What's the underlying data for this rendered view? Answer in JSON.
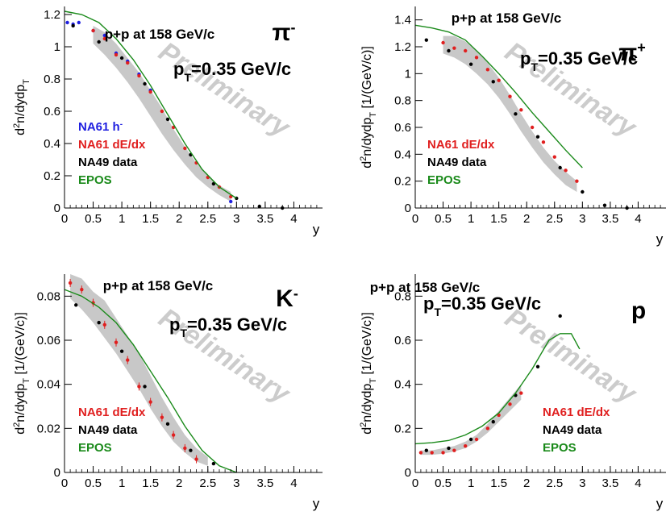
{
  "chart_data": [
    {
      "type": "scatter",
      "title": "p+p at 158 GeV/c",
      "particle": "π",
      "particle_sup": "-",
      "pt_label": "p",
      "pt_sub": "T",
      "pt_value": "=0.35 GeV/c",
      "watermark": "Preliminary",
      "xlabel": "y",
      "ylabel_main": "d",
      "ylabel_sup": "2",
      "ylabel_rest": "n/dydp",
      "ylabel_sub": "T",
      "ylabel_units": "",
      "xlim": [
        0,
        4.5
      ],
      "ylim": [
        0,
        1.25
      ],
      "xticks": [
        0,
        0.5,
        1,
        1.5,
        2,
        2.5,
        3,
        3.5,
        4
      ],
      "yticks": [
        0,
        0.2,
        0.4,
        0.6,
        0.8,
        1,
        1.2
      ],
      "xtick_labels": [
        "0",
        "0.5",
        "1",
        "1.5",
        "2",
        "2.5",
        "3",
        "3.5",
        "4"
      ],
      "ytick_labels": [
        "0",
        "0.2",
        "0.4",
        "0.6",
        "0.8",
        "1",
        "1.2"
      ],
      "legend": [
        {
          "label": "NA61 h",
          "sup": "-",
          "color": "#1f1fe0"
        },
        {
          "label": "NA61 dE/dx",
          "sup": "",
          "color": "#e01f1f"
        },
        {
          "label": "NA49 data",
          "sup": "",
          "color": "#000000"
        },
        {
          "label": "EPOS",
          "sup": "",
          "color": "#1a8a1a"
        }
      ],
      "band": {
        "x": [
          0.5,
          0.7,
          0.9,
          1.1,
          1.3,
          1.5,
          1.7,
          1.9,
          2.1,
          2.3,
          2.5,
          2.7,
          2.9
        ],
        "low": [
          1.02,
          0.95,
          0.87,
          0.78,
          0.68,
          0.57,
          0.46,
          0.36,
          0.27,
          0.19,
          0.13,
          0.08,
          0.04
        ],
        "high": [
          1.13,
          1.09,
          1.02,
          0.93,
          0.84,
          0.73,
          0.62,
          0.49,
          0.38,
          0.28,
          0.2,
          0.14,
          0.1
        ]
      },
      "series": [
        {
          "name": "NA61 h-",
          "color": "#1f1fe0",
          "x": [
            0.05,
            0.15,
            0.25,
            0.5,
            0.7,
            0.9,
            1.1,
            1.3,
            1.5,
            2.9
          ],
          "y": [
            1.15,
            1.14,
            1.15,
            1.1,
            1.07,
            0.96,
            0.91,
            0.83,
            0.73,
            0.04
          ]
        },
        {
          "name": "NA61 dE/dx",
          "color": "#e01f1f",
          "x": [
            0.5,
            0.7,
            0.9,
            1.1,
            1.3,
            1.5,
            1.7,
            1.9,
            2.1,
            2.3,
            2.5,
            2.7,
            2.9
          ],
          "y": [
            1.1,
            1.05,
            0.95,
            0.9,
            0.82,
            0.72,
            0.6,
            0.5,
            0.37,
            0.28,
            0.19,
            0.13,
            0.07
          ]
        },
        {
          "name": "NA49 data",
          "color": "#000000",
          "x": [
            0.15,
            0.6,
            1.0,
            1.4,
            1.8,
            2.2,
            2.6,
            3.0,
            3.4,
            3.8
          ],
          "y": [
            1.13,
            1.03,
            0.93,
            0.77,
            0.55,
            0.33,
            0.15,
            0.06,
            0.01,
            0.0
          ]
        },
        {
          "name": "EPOS",
          "color": "#1a8a1a",
          "line": true,
          "x": [
            0,
            0.3,
            0.6,
            0.9,
            1.2,
            1.5,
            1.8,
            2.1,
            2.4,
            2.7,
            3.0
          ],
          "y": [
            1.22,
            1.2,
            1.15,
            1.05,
            0.92,
            0.76,
            0.58,
            0.4,
            0.24,
            0.13,
            0.06
          ]
        }
      ]
    },
    {
      "type": "scatter",
      "title": "p+p at 158 GeV/c",
      "particle": "π",
      "particle_sup": "+",
      "pt_label": "p",
      "pt_sub": "T",
      "pt_value": "=0.35 GeV/c",
      "watermark": "Preliminary",
      "xlabel": "y",
      "ylabel_main": "d",
      "ylabel_sup": "2",
      "ylabel_rest": "n/dydp",
      "ylabel_sub": "T",
      "ylabel_units": " [1/(GeV/c)]",
      "xlim": [
        0,
        4.5
      ],
      "ylim": [
        0,
        1.5
      ],
      "xticks": [
        0,
        0.5,
        1,
        1.5,
        2,
        2.5,
        3,
        3.5,
        4
      ],
      "yticks": [
        0,
        0.2,
        0.4,
        0.6,
        0.8,
        1,
        1.2,
        1.4
      ],
      "xtick_labels": [
        "0",
        "0.5",
        "1",
        "1.5",
        "2",
        "2.5",
        "3",
        "3.5",
        "4"
      ],
      "ytick_labels": [
        "0",
        "0.2",
        "0.4",
        "0.6",
        "0.8",
        "1",
        "1.2",
        "1.4"
      ],
      "legend": [
        {
          "label": "NA61 dE/dx",
          "sup": "",
          "color": "#e01f1f"
        },
        {
          "label": "NA49 data",
          "sup": "",
          "color": "#000000"
        },
        {
          "label": "EPOS",
          "sup": "",
          "color": "#1a8a1a"
        }
      ],
      "band": {
        "x": [
          0.5,
          0.7,
          0.9,
          1.1,
          1.3,
          1.5,
          1.7,
          1.9,
          2.1,
          2.3,
          2.5,
          2.7,
          2.9
        ],
        "low": [
          1.15,
          1.12,
          1.07,
          1.0,
          0.92,
          0.82,
          0.7,
          0.57,
          0.45,
          0.34,
          0.25,
          0.17,
          0.12
        ],
        "high": [
          1.28,
          1.28,
          1.24,
          1.17,
          1.08,
          0.97,
          0.84,
          0.7,
          0.57,
          0.45,
          0.35,
          0.27,
          0.2
        ]
      },
      "series": [
        {
          "name": "NA61 dE/dx",
          "color": "#e01f1f",
          "x": [
            0.5,
            0.7,
            0.9,
            1.1,
            1.3,
            1.5,
            1.7,
            1.9,
            2.1,
            2.3,
            2.5,
            2.7,
            2.9
          ],
          "y": [
            1.23,
            1.19,
            1.17,
            1.12,
            1.03,
            0.95,
            0.83,
            0.73,
            0.6,
            0.49,
            0.38,
            0.28,
            0.2
          ]
        },
        {
          "name": "NA49 data",
          "color": "#000000",
          "x": [
            0.2,
            0.6,
            1.0,
            1.4,
            1.8,
            2.2,
            2.6,
            3.0,
            3.4,
            3.8
          ],
          "y": [
            1.25,
            1.17,
            1.07,
            0.94,
            0.7,
            0.53,
            0.3,
            0.12,
            0.02,
            0.0
          ]
        },
        {
          "name": "EPOS",
          "color": "#1a8a1a",
          "line": true,
          "x": [
            0,
            0.3,
            0.6,
            0.9,
            1.2,
            1.5,
            1.8,
            2.1,
            2.4,
            2.7,
            3.0
          ],
          "y": [
            1.36,
            1.34,
            1.31,
            1.25,
            1.13,
            1.0,
            0.86,
            0.71,
            0.57,
            0.43,
            0.3
          ]
        }
      ]
    },
    {
      "type": "scatter",
      "title": "p+p at 158 GeV/c",
      "particle": "K",
      "particle_sup": "-",
      "pt_label": "p",
      "pt_sub": "T",
      "pt_value": "=0.35 GeV/c",
      "watermark": "Preliminary",
      "xlabel": "y",
      "ylabel_main": "d",
      "ylabel_sup": "2",
      "ylabel_rest": "n/dydp",
      "ylabel_sub": "T",
      "ylabel_units": " [1/(GeV/c)]",
      "xlim": [
        0,
        4.5
      ],
      "ylim": [
        0,
        0.09
      ],
      "xticks": [
        0,
        0.5,
        1,
        1.5,
        2,
        2.5,
        3,
        3.5,
        4
      ],
      "yticks": [
        0,
        0.02,
        0.04,
        0.06,
        0.08
      ],
      "xtick_labels": [
        "0",
        "0.5",
        "1",
        "1.5",
        "2",
        "2.5",
        "3",
        "3.5",
        "4"
      ],
      "ytick_labels": [
        "0",
        "0.02",
        "0.04",
        "0.06",
        "0.08"
      ],
      "legend": [
        {
          "label": "NA61 dE/dx",
          "sup": "",
          "color": "#e01f1f"
        },
        {
          "label": "NA49 data",
          "sup": "",
          "color": "#000000"
        },
        {
          "label": "EPOS",
          "sup": "",
          "color": "#1a8a1a"
        }
      ],
      "band": {
        "x": [
          0.1,
          0.3,
          0.5,
          0.7,
          0.9,
          1.1,
          1.3,
          1.5,
          1.7,
          1.9,
          2.1,
          2.3,
          2.5
        ],
        "low": [
          0.079,
          0.074,
          0.068,
          0.061,
          0.054,
          0.046,
          0.038,
          0.029,
          0.021,
          0.014,
          0.009,
          0.005,
          0.003
        ],
        "high": [
          0.09,
          0.088,
          0.082,
          0.078,
          0.07,
          0.062,
          0.054,
          0.044,
          0.034,
          0.025,
          0.017,
          0.011,
          0.007
        ]
      },
      "series": [
        {
          "name": "NA61 dE/dx",
          "color": "#e01f1f",
          "x": [
            0.1,
            0.3,
            0.5,
            0.7,
            0.9,
            1.1,
            1.3,
            1.5,
            1.7,
            1.9,
            2.1,
            2.3
          ],
          "y": [
            0.086,
            0.083,
            0.077,
            0.067,
            0.059,
            0.051,
            0.039,
            0.032,
            0.025,
            0.017,
            0.011,
            0.006
          ]
        },
        {
          "name": "NA49 data",
          "color": "#000000",
          "x": [
            0.2,
            0.6,
            1.0,
            1.4,
            1.8,
            2.2,
            2.6
          ],
          "y": [
            0.076,
            0.068,
            0.055,
            0.039,
            0.022,
            0.01,
            0.004
          ]
        },
        {
          "name": "EPOS",
          "color": "#1a8a1a",
          "line": true,
          "x": [
            0,
            0.3,
            0.6,
            0.9,
            1.2,
            1.5,
            1.8,
            2.1,
            2.4,
            2.7,
            3.0
          ],
          "y": [
            0.083,
            0.08,
            0.075,
            0.068,
            0.058,
            0.046,
            0.034,
            0.021,
            0.01,
            0.003,
            0.0
          ]
        }
      ]
    },
    {
      "type": "scatter",
      "title": "p+p at 158 GeV/c",
      "particle": "p",
      "particle_sup": "",
      "pt_label": "p",
      "pt_sub": "T",
      "pt_value": "=0.35 GeV/c",
      "watermark": "Preliminary",
      "xlabel": "y",
      "ylabel_main": "d",
      "ylabel_sup": "2",
      "ylabel_rest": "n/dydp",
      "ylabel_sub": "T",
      "ylabel_units": " [1/(GeV/c)]",
      "xlim": [
        0,
        4.5
      ],
      "ylim": [
        0,
        0.9
      ],
      "xticks": [
        0,
        0.5,
        1,
        1.5,
        2,
        2.5,
        3,
        3.5,
        4
      ],
      "yticks": [
        0,
        0.2,
        0.4,
        0.6,
        0.8
      ],
      "xtick_labels": [
        "0",
        "0.5",
        "1",
        "1.5",
        "2",
        "2.5",
        "3",
        "3.5",
        "4"
      ],
      "ytick_labels": [
        "0",
        "0.2",
        "0.4",
        "0.6",
        "0.8"
      ],
      "legend": [
        {
          "label": "NA61 dE/dx",
          "sup": "",
          "color": "#e01f1f"
        },
        {
          "label": "NA49 data",
          "sup": "",
          "color": "#000000"
        },
        {
          "label": "EPOS",
          "sup": "",
          "color": "#1a8a1a"
        }
      ],
      "band": {
        "x": [
          0.1,
          0.3,
          0.5,
          0.7,
          0.9,
          1.1,
          1.3,
          1.5,
          1.7,
          1.9
        ],
        "low": [
          0.08,
          0.08,
          0.085,
          0.095,
          0.11,
          0.14,
          0.18,
          0.23,
          0.28,
          0.33
        ],
        "high": [
          0.1,
          0.1,
          0.11,
          0.12,
          0.14,
          0.17,
          0.22,
          0.28,
          0.34,
          0.4
        ]
      },
      "series": [
        {
          "name": "NA61 dE/dx",
          "color": "#e01f1f",
          "x": [
            0.1,
            0.3,
            0.5,
            0.7,
            0.9,
            1.1,
            1.3,
            1.5,
            1.7,
            1.9
          ],
          "y": [
            0.09,
            0.09,
            0.09,
            0.1,
            0.12,
            0.15,
            0.2,
            0.26,
            0.31,
            0.36
          ]
        },
        {
          "name": "NA49 data",
          "color": "#000000",
          "x": [
            0.2,
            0.6,
            1.0,
            1.4,
            1.8,
            2.2,
            2.6
          ],
          "y": [
            0.1,
            0.11,
            0.15,
            0.23,
            0.35,
            0.48,
            0.71
          ]
        },
        {
          "name": "EPOS",
          "color": "#1a8a1a",
          "line": true,
          "x": [
            0,
            0.3,
            0.6,
            0.9,
            1.2,
            1.5,
            1.8,
            2.1,
            2.4,
            2.6,
            2.8,
            2.95
          ],
          "y": [
            0.13,
            0.135,
            0.145,
            0.17,
            0.21,
            0.27,
            0.36,
            0.47,
            0.6,
            0.63,
            0.63,
            0.56
          ]
        }
      ]
    }
  ]
}
